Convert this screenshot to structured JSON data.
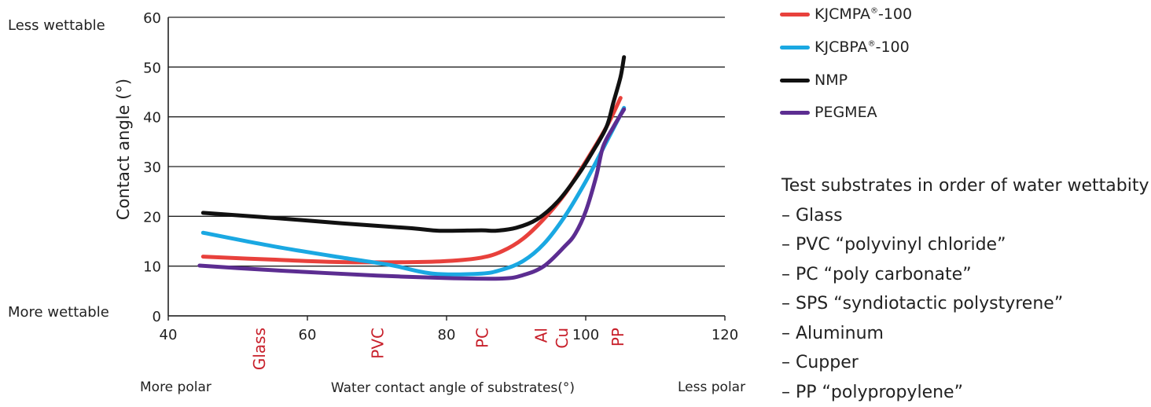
{
  "chart_data": {
    "type": "line",
    "xlabel": "Water contact angle of substrates(°)",
    "ylabel": "Contact angle (°)",
    "xlim": [
      40,
      120
    ],
    "ylim": [
      0,
      60
    ],
    "x_ticks": [
      "40",
      "60",
      "80",
      "100",
      "120"
    ],
    "y_ticks": [
      "0",
      "10",
      "20",
      "30",
      "40",
      "50",
      "60"
    ],
    "grid": "horizontal",
    "legend_position": "top-right",
    "series": [
      {
        "name": "KJCMPA®-100",
        "color": "#e8413c",
        "points": [
          [
            45,
            11.9
          ],
          [
            55,
            11.3
          ],
          [
            65,
            10.8
          ],
          [
            75,
            10.8
          ],
          [
            80,
            11.0
          ],
          [
            85,
            11.7
          ],
          [
            88,
            13.0
          ],
          [
            91,
            15.5
          ],
          [
            94,
            19.5
          ],
          [
            97,
            24.5
          ],
          [
            100,
            31.0
          ],
          [
            103,
            38.0
          ],
          [
            105,
            43.8
          ]
        ]
      },
      {
        "name": "KJCBPA®-100",
        "color": "#1aa8e2",
        "points": [
          [
            45,
            16.7
          ],
          [
            55,
            14.0
          ],
          [
            65,
            11.7
          ],
          [
            72,
            10.2
          ],
          [
            78,
            8.5
          ],
          [
            85,
            8.5
          ],
          [
            88,
            9.3
          ],
          [
            91,
            11.0
          ],
          [
            94,
            14.5
          ],
          [
            97,
            20.0
          ],
          [
            100,
            27.0
          ],
          [
            103,
            35.0
          ],
          [
            105.5,
            41.8
          ]
        ]
      },
      {
        "name": "NMP",
        "color": "#111111",
        "points": [
          [
            45,
            20.7
          ],
          [
            55,
            19.7
          ],
          [
            65,
            18.6
          ],
          [
            75,
            17.6
          ],
          [
            79,
            17.1
          ],
          [
            85,
            17.2
          ],
          [
            87,
            17.1
          ],
          [
            90,
            17.7
          ],
          [
            93,
            19.4
          ],
          [
            96,
            23.0
          ],
          [
            99,
            28.5
          ],
          [
            101,
            33.0
          ],
          [
            103,
            38.0
          ],
          [
            104,
            43.0
          ],
          [
            105,
            48.0
          ],
          [
            105.5,
            52.0
          ]
        ]
      },
      {
        "name": "PEGMEA",
        "color": "#5c2d91",
        "points": [
          [
            44.5,
            10.1
          ],
          [
            50,
            9.6
          ],
          [
            60,
            8.8
          ],
          [
            70,
            8.1
          ],
          [
            80,
            7.6
          ],
          [
            88,
            7.5
          ],
          [
            91,
            8.2
          ],
          [
            94,
            10.0
          ],
          [
            97,
            14.0
          ],
          [
            98.5,
            16.5
          ],
          [
            100,
            21.0
          ],
          [
            101.5,
            28.0
          ],
          [
            102.5,
            34.0
          ],
          [
            104,
            38.0
          ],
          [
            105.5,
            41.5
          ]
        ]
      }
    ],
    "substrate_markers": [
      {
        "label": "Glass",
        "x": 53
      },
      {
        "label": "PVC",
        "x": 70
      },
      {
        "label": "PC",
        "x": 85
      },
      {
        "label": "Al",
        "x": 93.5
      },
      {
        "label": "Cu",
        "x": 96.5
      },
      {
        "label": "PP",
        "x": 104.5
      }
    ],
    "annotations": {
      "less_wettable": "Less wettable",
      "more_wettable": "More wettable",
      "more_polar": "More polar",
      "less_polar": "Less polar"
    }
  },
  "colors": {
    "marker_text": "#c8202b",
    "grid": "#222222"
  },
  "substrates_panel": {
    "title": "Test substrates in order of water wettabity",
    "items": [
      "Glass",
      "PVC “polyvinyl chloride”",
      "PC “poly carbonate”",
      "SPS “syndiotactic polystyrene”",
      "Aluminum",
      "Cupper",
      "PP “polypropylene”"
    ]
  }
}
